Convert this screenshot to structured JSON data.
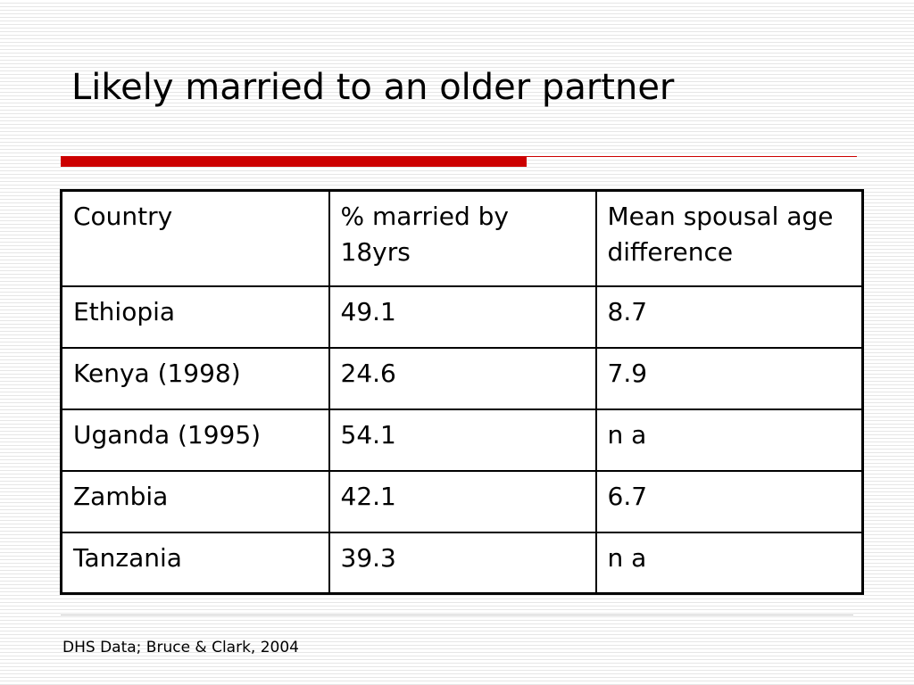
{
  "slide": {
    "title": "Likely married to an older partner",
    "accent_color": "#cc0000"
  },
  "table": {
    "headers": {
      "country": "Country",
      "married_by_18": "% married by 18yrs",
      "spousal_age_diff": "Mean spousal age difference"
    },
    "rows": [
      {
        "country": "Ethiopia",
        "married_by_18": "49.1",
        "spousal_age_diff": "8.7"
      },
      {
        "country": "Kenya (1998)",
        "married_by_18": "24.6",
        "spousal_age_diff": "7.9"
      },
      {
        "country": "Uganda (1995)",
        "married_by_18": "54.1",
        "spousal_age_diff": "n a"
      },
      {
        "country": "Zambia",
        "married_by_18": "42.1",
        "spousal_age_diff": "6.7"
      },
      {
        "country": "Tanzania",
        "married_by_18": "39.3",
        "spousal_age_diff": "n a"
      }
    ]
  },
  "footer": {
    "source": "DHS Data; Bruce & Clark, 2004"
  }
}
